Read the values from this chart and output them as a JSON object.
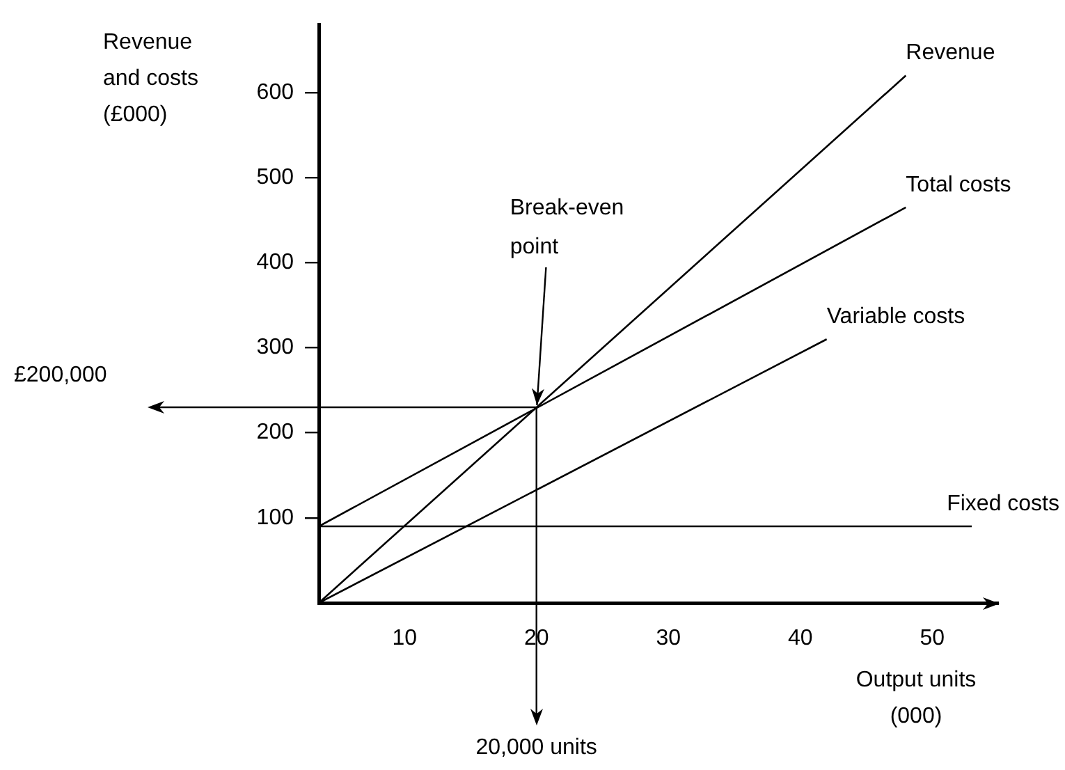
{
  "chart_data": {
    "type": "line",
    "xlabel": "Output units (000)",
    "ylabel": "Revenue and costs (£000)",
    "xlim": [
      3.5,
      55
    ],
    "xticks": [
      10,
      20,
      30,
      40,
      50
    ],
    "ylim": [
      0,
      680
    ],
    "yticks": [
      100,
      200,
      300,
      400,
      500,
      600
    ],
    "series": [
      {
        "name": "Revenue",
        "color": "#000000",
        "x": [
          3.5,
          48
        ],
        "values": [
          0,
          620
        ]
      },
      {
        "name": "Total costs",
        "color": "#000000",
        "x": [
          3.5,
          48
        ],
        "values": [
          90,
          465
        ]
      },
      {
        "name": "Variable costs",
        "color": "#000000",
        "x": [
          3.5,
          42
        ],
        "values": [
          0,
          310
        ]
      },
      {
        "name": "Fixed costs",
        "color": "#000000",
        "x": [
          3.5,
          53
        ],
        "values": [
          90,
          90
        ]
      }
    ],
    "ref_lines": [
      {
        "axis": "y",
        "value": 230
      },
      {
        "axis": "x",
        "value": 20,
        "label": "20,000 units"
      }
    ],
    "annotations": [
      {
        "text": "Break-even point",
        "x": 20,
        "y": 230
      },
      "£200,000"
    ]
  }
}
